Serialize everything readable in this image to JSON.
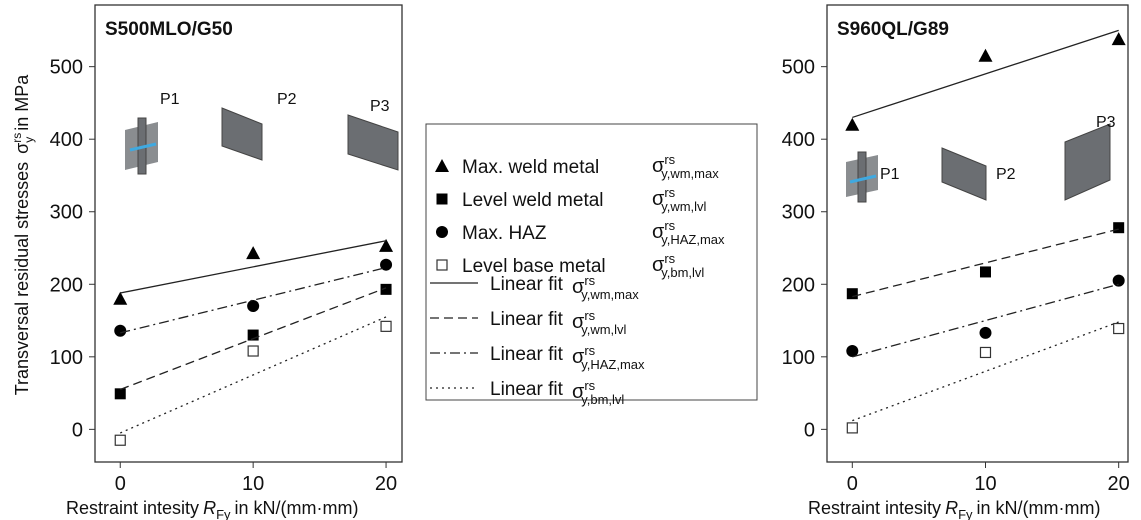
{
  "chart_data": [
    {
      "type": "scatter",
      "title": "S500MLO/G50",
      "xlim": [
        -1.9,
        21.2
      ],
      "ylim": [
        -45,
        585
      ],
      "xticks": [
        0,
        10,
        20
      ],
      "yticks": [
        0,
        100,
        200,
        300,
        400,
        500
      ],
      "y_label": {
        "text": "Transversal residual stresses",
        "symbol": "σ",
        "sup": "rs",
        "sub": "y",
        "unit": "in MPa"
      },
      "x_label": {
        "text": "Restraint intesity",
        "symbol": "R",
        "sub": "Fy",
        "unit": "in kN/(mm·mm)"
      },
      "annotations": [
        "P1",
        "P2",
        "P3"
      ],
      "series": [
        {
          "marker": "triangle",
          "x": [
            0,
            10,
            20
          ],
          "values": [
            180,
            243,
            253
          ]
        },
        {
          "marker": "square",
          "x": [
            0,
            10,
            20
          ],
          "values": [
            49,
            130,
            193
          ]
        },
        {
          "marker": "circle",
          "x": [
            0,
            10,
            20
          ],
          "values": [
            136,
            170,
            227
          ]
        },
        {
          "marker": "open-square",
          "x": [
            0,
            10,
            20
          ],
          "values": [
            -15,
            108,
            142
          ]
        },
        {
          "dash": "solid",
          "x": [
            0,
            20
          ],
          "values": [
            188,
            260
          ]
        },
        {
          "dash": "dashed",
          "x": [
            0,
            20
          ],
          "values": [
            55,
            195
          ]
        },
        {
          "dash": "dashdot",
          "x": [
            0,
            20
          ],
          "values": [
            133,
            223
          ]
        },
        {
          "dash": "dotted",
          "x": [
            0,
            20
          ],
          "values": [
            -5,
            155
          ]
        }
      ]
    },
    {
      "type": "scatter",
      "title": "S960QL/G89",
      "xlim": [
        -1.9,
        20.7
      ],
      "ylim": [
        -45,
        585
      ],
      "xticks": [
        0,
        10,
        20
      ],
      "yticks": [
        0,
        100,
        200,
        300,
        400,
        500
      ],
      "x_label": {
        "text": "Restraint intesity",
        "symbol": "R",
        "sub": "Fy",
        "unit": "in kN/(mm·mm)"
      },
      "annotations": [
        "P1",
        "P2",
        "P3"
      ],
      "series": [
        {
          "marker": "triangle",
          "x": [
            0,
            10,
            20
          ],
          "values": [
            420,
            515,
            538
          ]
        },
        {
          "marker": "square",
          "x": [
            0,
            10,
            20
          ],
          "values": [
            187,
            217,
            278
          ]
        },
        {
          "marker": "circle",
          "x": [
            0,
            10,
            20
          ],
          "values": [
            108,
            133,
            205
          ]
        },
        {
          "marker": "open-square",
          "x": [
            0,
            10,
            20
          ],
          "values": [
            2,
            106,
            139
          ]
        },
        {
          "dash": "solid",
          "x": [
            0,
            20
          ],
          "values": [
            430,
            550
          ]
        },
        {
          "dash": "dashed",
          "x": [
            0,
            20
          ],
          "values": [
            183,
            276
          ]
        },
        {
          "dash": "dashdot",
          "x": [
            0,
            20
          ],
          "values": [
            100,
            200
          ]
        },
        {
          "dash": "dotted",
          "x": [
            0,
            20
          ],
          "values": [
            12,
            148
          ]
        }
      ]
    }
  ],
  "legend": {
    "markers": [
      {
        "marker": "triangle",
        "label": "Max. weld metal",
        "symbol": "σ",
        "sup": "rs",
        "sub": "y,wm,max"
      },
      {
        "marker": "square",
        "label": "Level weld metal",
        "symbol": "σ",
        "sup": "rs",
        "sub": "y,wm,lvl"
      },
      {
        "marker": "circle",
        "label": "Max. HAZ",
        "symbol": "σ",
        "sup": "rs",
        "sub": "y,HAZ,max"
      },
      {
        "marker": "open-square",
        "label": "Level base metal",
        "symbol": "σ",
        "sup": "rs",
        "sub": "y,bm,lvl"
      }
    ],
    "fits": [
      {
        "dash": "solid",
        "label": "Linear fit",
        "symbol": "σ",
        "sup": "rs",
        "sub": "y,wm,max"
      },
      {
        "dash": "dashed",
        "label": "Linear fit",
        "symbol": "σ",
        "sup": "rs",
        "sub": "y,wm,lvl"
      },
      {
        "dash": "dashdot",
        "label": "Linear fit",
        "symbol": "σ",
        "sup": "rs",
        "sub": "y,HAZ,max"
      },
      {
        "dash": "dotted",
        "label": "Linear fit",
        "symbol": "σ",
        "sup": "rs",
        "sub": "y,bm,lvl"
      }
    ]
  }
}
